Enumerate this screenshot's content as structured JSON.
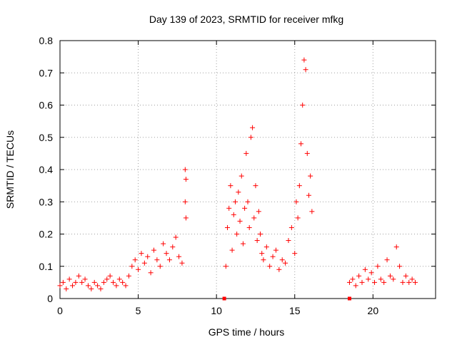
{
  "chart_data": {
    "type": "scatter",
    "title": "Day 139 of 2023, SRMTID for receiver mfkg",
    "xlabel": "GPS time / hours",
    "ylabel": "SRMTID / TECUs",
    "xlim": [
      0,
      24
    ],
    "ylim": [
      0,
      0.8
    ],
    "xticks": [
      0,
      5,
      10,
      15,
      20
    ],
    "yticks": [
      0,
      0.1,
      0.2,
      0.3,
      0.4,
      0.5,
      0.6,
      0.7,
      0.8
    ],
    "xtick_labels": [
      "0",
      "5",
      "10",
      "15",
      "20"
    ],
    "ytick_labels": [
      "0",
      "0.1",
      "0.2",
      "0.3",
      "0.4",
      "0.5",
      "0.6",
      "0.7",
      "0.8"
    ],
    "grid": true,
    "marker": "plus",
    "marker_color": "#ff0000",
    "series": [
      {
        "name": "SRMTID",
        "x": [
          0.0,
          0.2,
          0.4,
          0.6,
          0.8,
          1.0,
          1.2,
          1.4,
          1.6,
          1.8,
          2.0,
          2.2,
          2.4,
          2.6,
          2.8,
          3.0,
          3.2,
          3.4,
          3.6,
          3.8,
          4.0,
          4.2,
          4.4,
          4.6,
          4.8,
          5.0,
          5.2,
          5.4,
          5.6,
          5.8,
          6.0,
          6.2,
          6.4,
          6.6,
          6.8,
          7.0,
          7.2,
          7.4,
          7.6,
          7.8,
          8.0,
          8.0,
          8.05,
          8.05,
          10.6,
          10.7,
          10.8,
          10.9,
          11.0,
          11.1,
          11.2,
          11.3,
          11.4,
          11.5,
          11.6,
          11.7,
          11.8,
          11.9,
          12.0,
          12.1,
          12.2,
          12.3,
          12.4,
          12.5,
          12.6,
          12.7,
          12.8,
          12.9,
          13.0,
          13.2,
          13.4,
          13.6,
          13.8,
          14.0,
          14.2,
          14.4,
          14.6,
          14.8,
          15.0,
          15.1,
          15.2,
          15.3,
          15.4,
          15.5,
          15.6,
          15.7,
          15.8,
          15.9,
          16.0,
          16.1,
          18.5,
          18.7,
          18.9,
          19.1,
          19.3,
          19.5,
          19.7,
          19.9,
          20.1,
          20.3,
          20.5,
          20.7,
          20.9,
          21.1,
          21.3,
          21.5,
          21.7,
          21.9,
          22.1,
          22.3,
          22.5,
          22.7
        ],
        "y": [
          0.04,
          0.05,
          0.03,
          0.06,
          0.04,
          0.05,
          0.07,
          0.05,
          0.06,
          0.04,
          0.03,
          0.05,
          0.04,
          0.03,
          0.05,
          0.06,
          0.07,
          0.05,
          0.04,
          0.06,
          0.05,
          0.04,
          0.07,
          0.1,
          0.12,
          0.09,
          0.14,
          0.11,
          0.13,
          0.08,
          0.15,
          0.12,
          0.1,
          0.17,
          0.14,
          0.12,
          0.16,
          0.19,
          0.13,
          0.11,
          0.4,
          0.3,
          0.37,
          0.25,
          0.1,
          0.22,
          0.28,
          0.35,
          0.15,
          0.26,
          0.3,
          0.2,
          0.33,
          0.24,
          0.38,
          0.17,
          0.28,
          0.45,
          0.3,
          0.22,
          0.5,
          0.53,
          0.25,
          0.35,
          0.18,
          0.27,
          0.2,
          0.14,
          0.12,
          0.16,
          0.1,
          0.13,
          0.15,
          0.09,
          0.12,
          0.11,
          0.18,
          0.22,
          0.14,
          0.3,
          0.25,
          0.35,
          0.48,
          0.6,
          0.74,
          0.71,
          0.45,
          0.32,
          0.38,
          0.27,
          0.05,
          0.06,
          0.04,
          0.07,
          0.05,
          0.09,
          0.06,
          0.08,
          0.05,
          0.1,
          0.06,
          0.05,
          0.12,
          0.07,
          0.06,
          0.16,
          0.1,
          0.05,
          0.07,
          0.05,
          0.06,
          0.05
        ]
      }
    ],
    "baseline_markers": {
      "x": [
        10.5,
        18.5
      ],
      "y": [
        0,
        0
      ]
    }
  }
}
